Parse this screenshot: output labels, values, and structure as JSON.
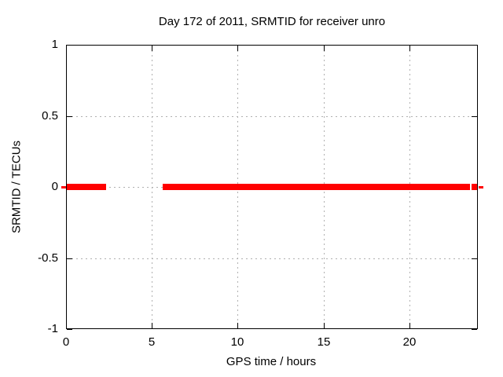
{
  "chart_data": {
    "type": "line",
    "title": "Day 172 of 2011, SRMTID for receiver unro",
    "xlabel": "GPS time / hours",
    "ylabel": "SRMTID / TECUs",
    "xlim": [
      0,
      24
    ],
    "ylim": [
      -1,
      1
    ],
    "grid": "on",
    "legend": "none",
    "background_color": "#ffffff",
    "grid_color": "#b0b0b0",
    "border_color": "#000000",
    "xticks": [
      {
        "value": 0,
        "label": "0",
        "grid": false
      },
      {
        "value": 5,
        "label": "5",
        "grid": true
      },
      {
        "value": 10,
        "label": "10",
        "grid": true
      },
      {
        "value": 15,
        "label": "15",
        "grid": true
      },
      {
        "value": 20,
        "label": "20",
        "grid": true
      }
    ],
    "yticks": [
      {
        "value": -1,
        "label": "-1",
        "grid": false
      },
      {
        "value": -0.5,
        "label": "-0.5",
        "grid": true
      },
      {
        "value": 0,
        "label": "0",
        "grid": true
      },
      {
        "value": 0.5,
        "label": "0.5",
        "grid": true
      },
      {
        "value": 1,
        "label": "1",
        "grid": false
      }
    ],
    "series": [
      {
        "name": "SRMTID",
        "color": "#ff0000",
        "y_value": 0,
        "segments_hours": [
          [
            0,
            2.34
          ],
          [
            5.65,
            23.54
          ],
          [
            23.63,
            24.0
          ]
        ],
        "edge_dashes_hours": [
          [
            -0.28,
            -0.02
          ],
          [
            24.04,
            24.3
          ]
        ]
      }
    ]
  }
}
